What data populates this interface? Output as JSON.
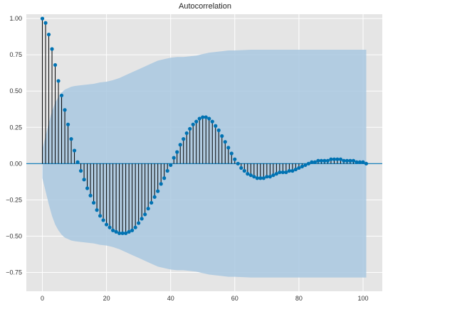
{
  "chart_data": {
    "type": "stem",
    "title": "Autocorrelation",
    "xlabel": "",
    "ylabel": "",
    "xlim": [
      -5,
      106
    ],
    "ylim": [
      -0.88,
      1.03
    ],
    "x_ticks": [
      0,
      20,
      40,
      60,
      80,
      100
    ],
    "y_ticks": [
      -0.75,
      -0.5,
      -0.25,
      0.0,
      0.25,
      0.5,
      0.75,
      1.0
    ],
    "y_tick_labels": [
      "−0.75",
      "−0.50",
      "−0.25",
      "0.00",
      "0.25",
      "0.50",
      "0.75",
      "1.00"
    ],
    "grid": true,
    "background": "#e5e5e5",
    "marker_color": "#0072b2",
    "stem_color": "#000000",
    "band_color": "#a9c8e0",
    "x": [
      0,
      1,
      2,
      3,
      4,
      5,
      6,
      7,
      8,
      9,
      10,
      11,
      12,
      13,
      14,
      15,
      16,
      17,
      18,
      19,
      20,
      21,
      22,
      23,
      24,
      25,
      26,
      27,
      28,
      29,
      30,
      31,
      32,
      33,
      34,
      35,
      36,
      37,
      38,
      39,
      40,
      41,
      42,
      43,
      44,
      45,
      46,
      47,
      48,
      49,
      50,
      51,
      52,
      53,
      54,
      55,
      56,
      57,
      58,
      59,
      60,
      61,
      62,
      63,
      64,
      65,
      66,
      67,
      68,
      69,
      70,
      71,
      72,
      73,
      74,
      75,
      76,
      77,
      78,
      79,
      80,
      81,
      82,
      83,
      84,
      85,
      86,
      87,
      88,
      89,
      90,
      91,
      92,
      93,
      94,
      95,
      96,
      97,
      98,
      99,
      100,
      101
    ],
    "values": [
      1.0,
      0.97,
      0.89,
      0.79,
      0.68,
      0.57,
      0.47,
      0.37,
      0.27,
      0.17,
      0.09,
      0.01,
      -0.05,
      -0.11,
      -0.17,
      -0.22,
      -0.27,
      -0.32,
      -0.36,
      -0.39,
      -0.42,
      -0.44,
      -0.46,
      -0.47,
      -0.48,
      -0.48,
      -0.48,
      -0.47,
      -0.46,
      -0.44,
      -0.41,
      -0.38,
      -0.35,
      -0.31,
      -0.27,
      -0.23,
      -0.19,
      -0.14,
      -0.1,
      -0.05,
      -0.01,
      0.04,
      0.08,
      0.13,
      0.17,
      0.21,
      0.24,
      0.27,
      0.29,
      0.31,
      0.32,
      0.32,
      0.31,
      0.29,
      0.26,
      0.23,
      0.19,
      0.15,
      0.11,
      0.07,
      0.03,
      0.0,
      -0.03,
      -0.05,
      -0.07,
      -0.08,
      -0.09,
      -0.1,
      -0.1,
      -0.1,
      -0.09,
      -0.09,
      -0.08,
      -0.07,
      -0.06,
      -0.06,
      -0.06,
      -0.05,
      -0.05,
      -0.04,
      -0.03,
      -0.02,
      -0.01,
      0.0,
      0.01,
      0.01,
      0.02,
      0.02,
      0.02,
      0.02,
      0.03,
      0.03,
      0.03,
      0.03,
      0.02,
      0.02,
      0.02,
      0.02,
      0.01,
      0.01,
      0.01,
      0.0
    ],
    "confidence_band": {
      "x": [
        0,
        1,
        2,
        3,
        4,
        5,
        6,
        7,
        8,
        9,
        10,
        12,
        14,
        16,
        18,
        20,
        22,
        24,
        26,
        28,
        30,
        32,
        34,
        36,
        38,
        40,
        42,
        44,
        46,
        48,
        50,
        52,
        54,
        56,
        58,
        60,
        65,
        70,
        75,
        80,
        85,
        90,
        95,
        100,
        101
      ],
      "upper": [
        0.1,
        0.19,
        0.28,
        0.36,
        0.42,
        0.46,
        0.49,
        0.51,
        0.52,
        0.53,
        0.535,
        0.54,
        0.545,
        0.55,
        0.56,
        0.565,
        0.575,
        0.59,
        0.61,
        0.63,
        0.65,
        0.67,
        0.69,
        0.71,
        0.72,
        0.73,
        0.735,
        0.735,
        0.74,
        0.745,
        0.755,
        0.765,
        0.77,
        0.775,
        0.78,
        0.78,
        0.785,
        0.785,
        0.785,
        0.785,
        0.785,
        0.785,
        0.785,
        0.785,
        0.785
      ]
    }
  }
}
